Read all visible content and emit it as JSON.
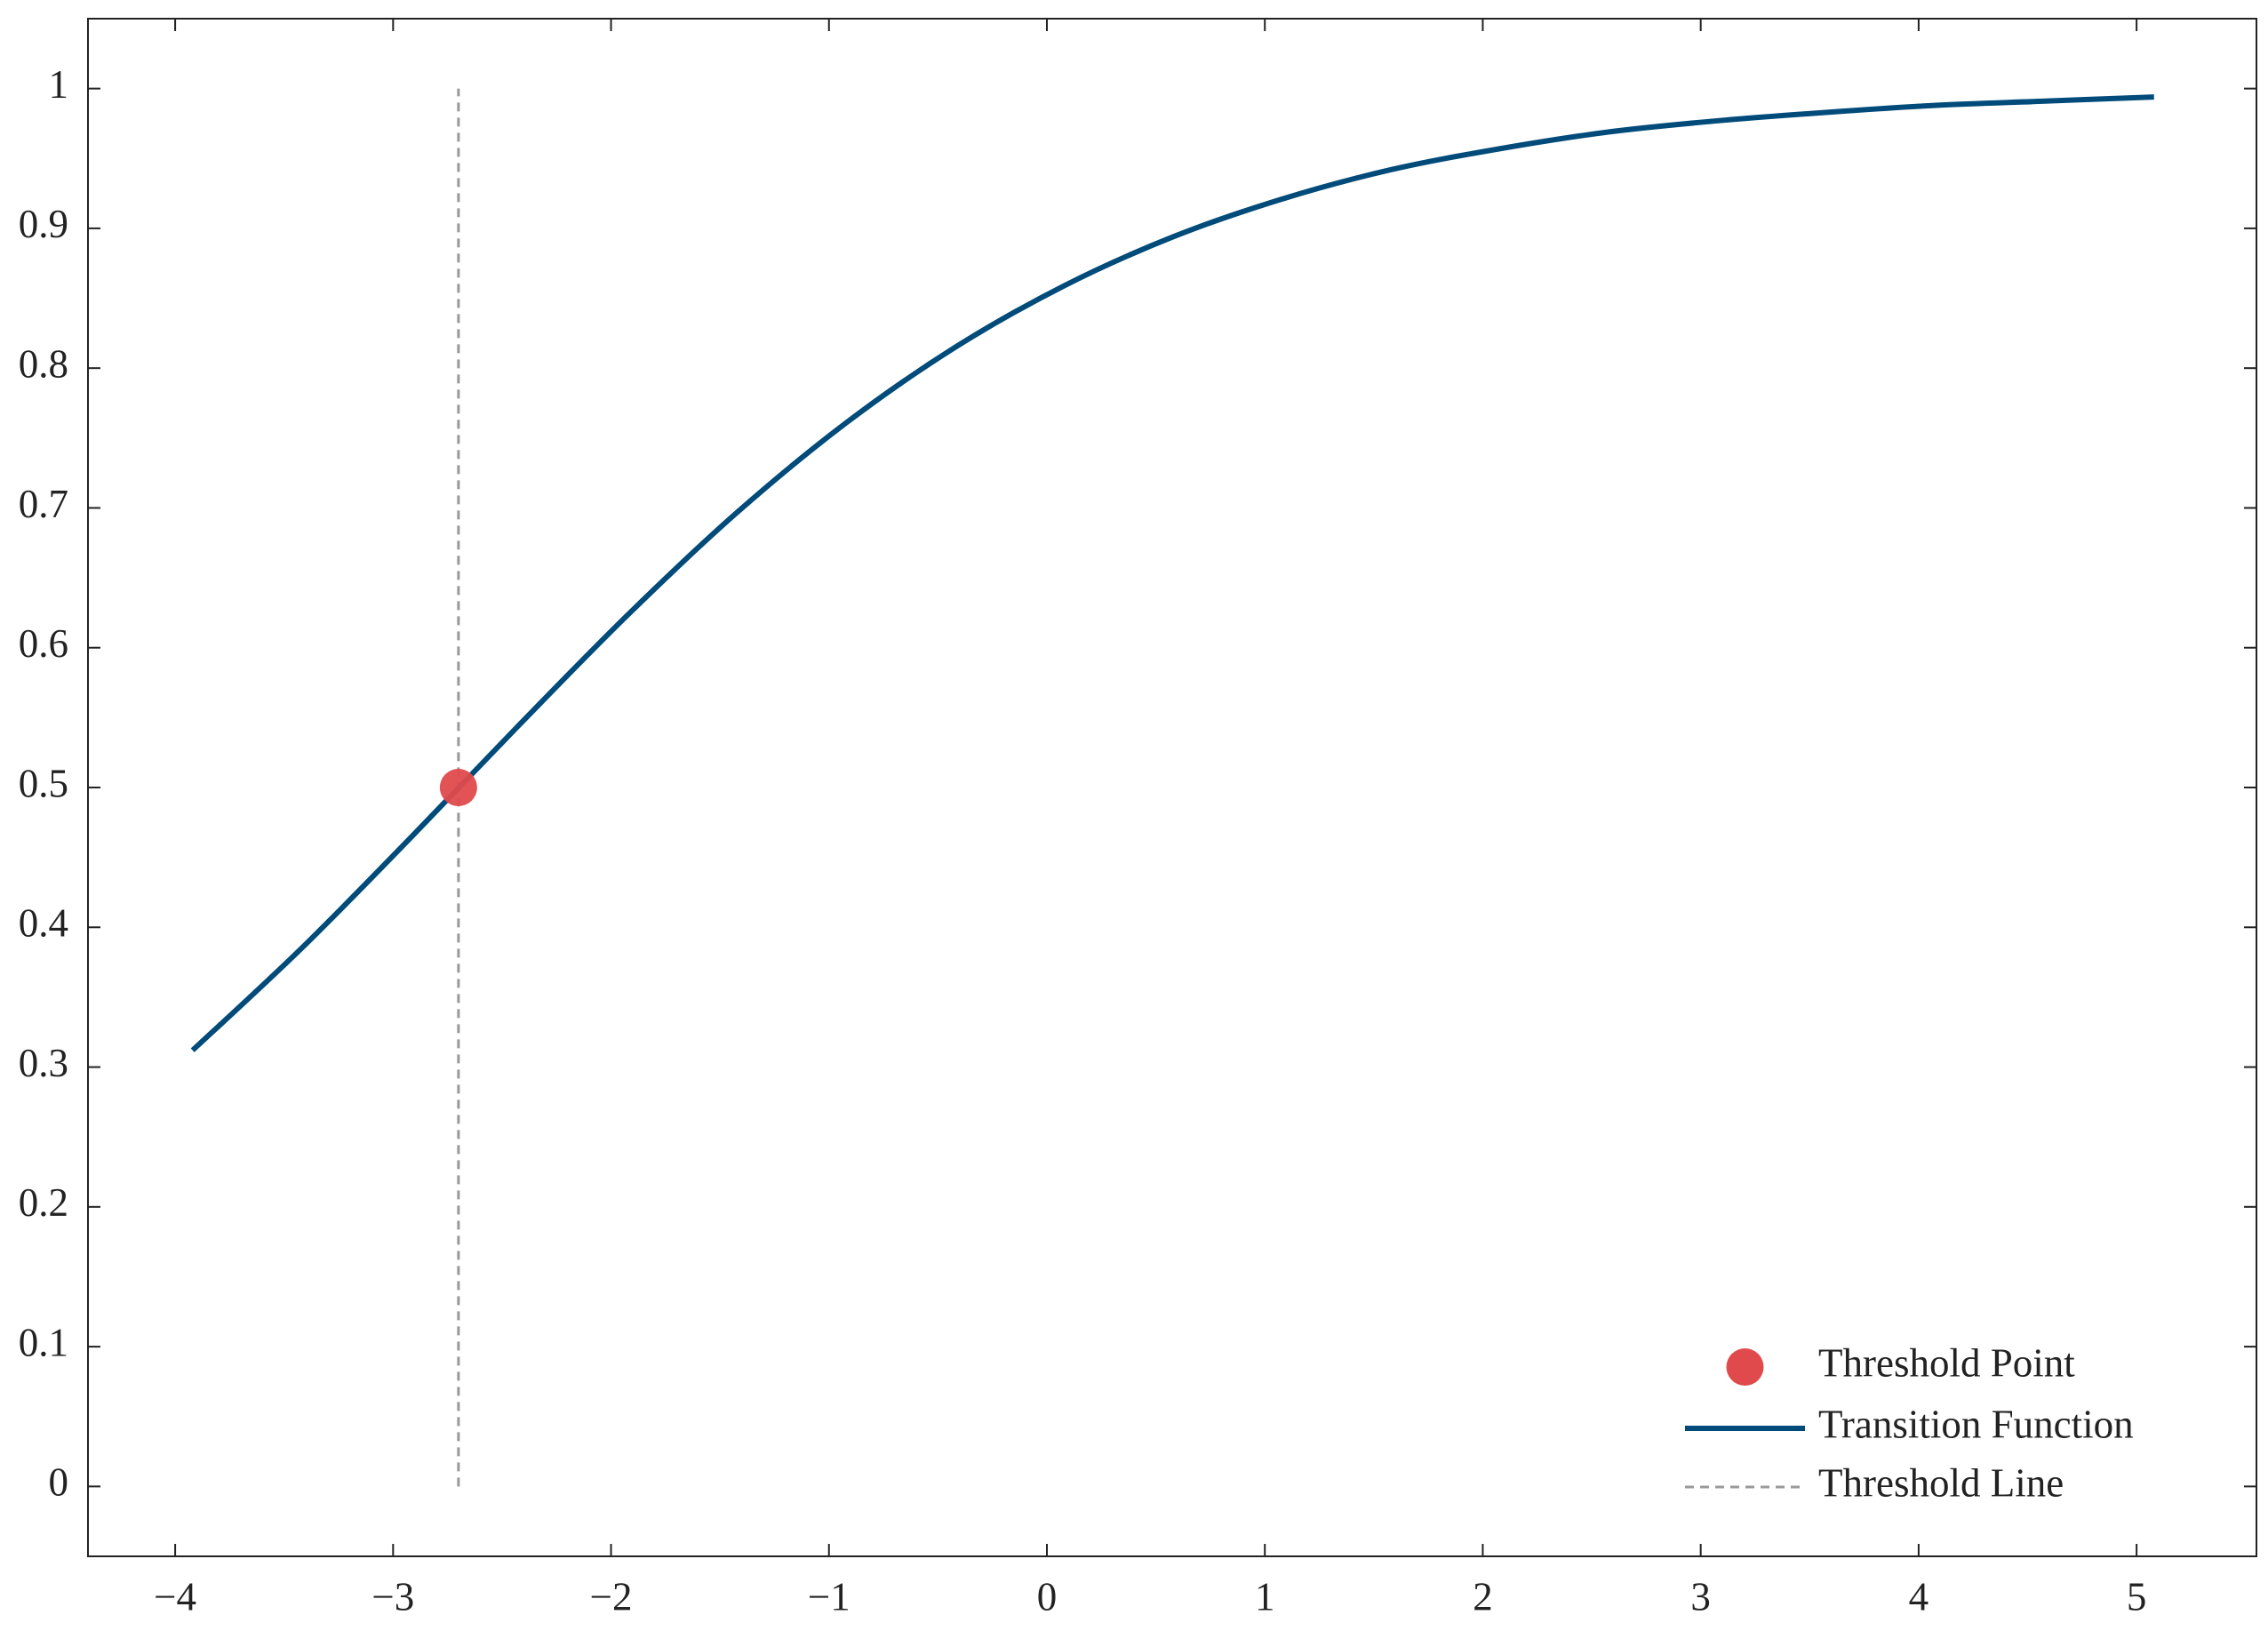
{
  "chart_data": {
    "type": "line",
    "xlim": [
      -4.4,
      5.55
    ],
    "ylim": [
      -0.05,
      1.05
    ],
    "xticks": [
      {
        "value": -4,
        "label": "−4"
      },
      {
        "value": -3,
        "label": "−3"
      },
      {
        "value": -2,
        "label": "−2"
      },
      {
        "value": -1,
        "label": "−1"
      },
      0,
      1,
      2,
      3,
      4,
      5
    ],
    "yticks": [
      0,
      0.1,
      0.2,
      0.3,
      0.4,
      0.5,
      0.6,
      0.7,
      0.8,
      0.9,
      1
    ],
    "legend": "lower right",
    "series": [
      {
        "name": "Transition Function",
        "color": "#004b7a",
        "x": [
          -3.92,
          -3.42,
          -2.92,
          -2.42,
          -1.92,
          -1.42,
          -0.92,
          -0.42,
          0.08,
          0.58,
          1.08,
          1.58,
          2.08,
          2.58,
          3.08,
          3.58,
          4.08,
          4.58,
          5.08
        ],
        "values": [
          0.312,
          0.385,
          0.464,
          0.545,
          0.624,
          0.697,
          0.761,
          0.815,
          0.859,
          0.894,
          0.921,
          0.942,
          0.957,
          0.969,
          0.977,
          0.983,
          0.988,
          0.991,
          0.994
        ]
      }
    ],
    "threshold_point": {
      "name": "Threshold Point",
      "color": "#e04a4c",
      "x": -2.7,
      "y": 0.5
    },
    "threshold_line": {
      "name": "Threshold Line",
      "color": "#999999",
      "x": -2.7,
      "y": [
        0,
        1
      ]
    }
  }
}
